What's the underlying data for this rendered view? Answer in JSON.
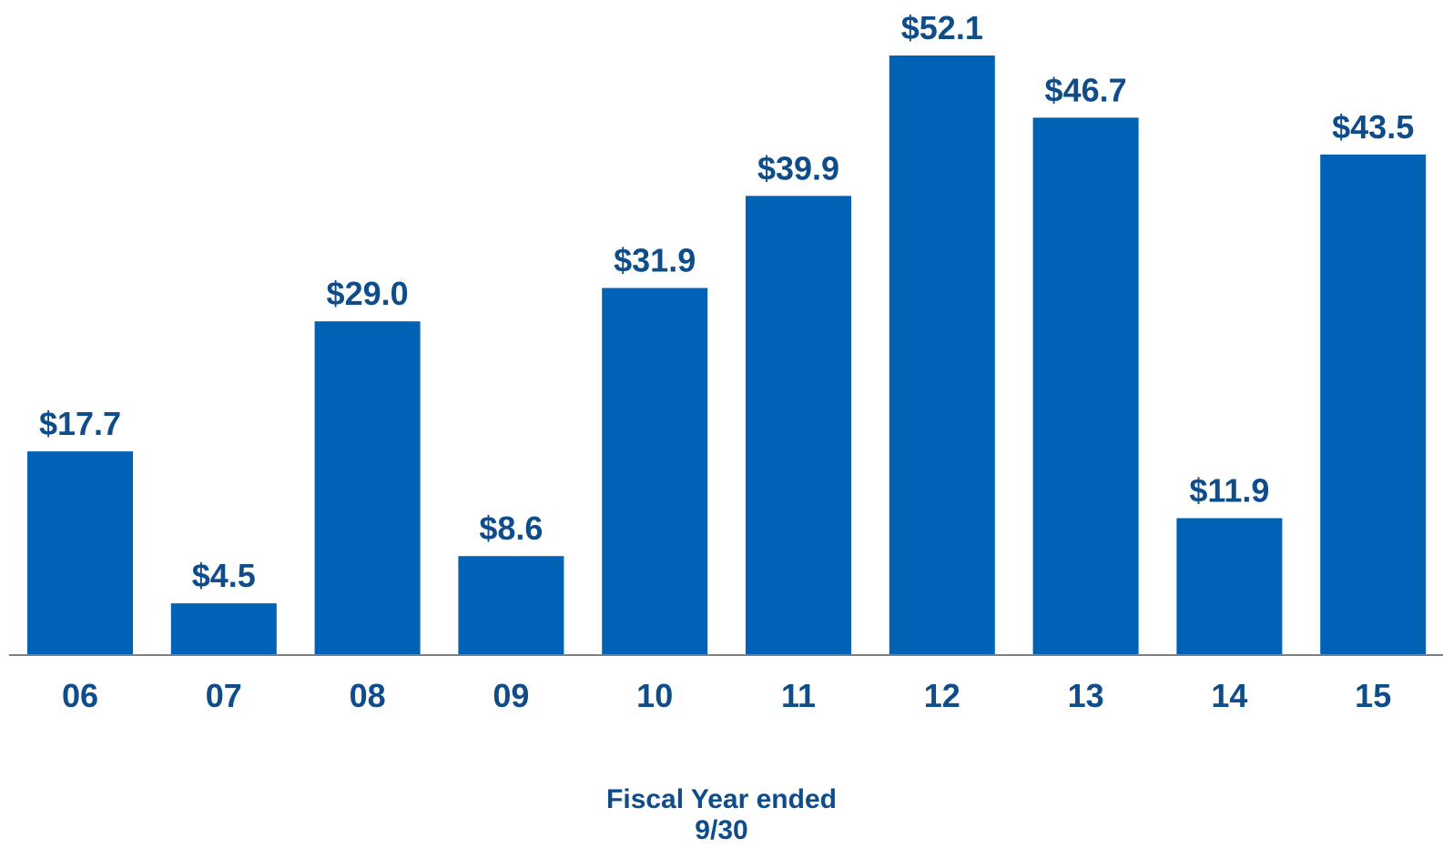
{
  "chart_data": {
    "type": "bar",
    "categories": [
      "06",
      "07",
      "08",
      "09",
      "10",
      "11",
      "12",
      "13",
      "14",
      "15"
    ],
    "values": [
      17.7,
      4.5,
      29.0,
      8.6,
      31.9,
      39.9,
      52.1,
      46.7,
      11.9,
      43.5
    ],
    "value_labels": [
      "$17.7",
      "$4.5",
      "$29.0",
      "$8.6",
      "$31.9",
      "$39.9",
      "$52.1",
      "$46.7",
      "$11.9",
      "$43.5"
    ],
    "xlabel_lines": [
      "Fiscal Year ended",
      "9/30"
    ],
    "ylim": [
      0,
      52.1
    ],
    "grid": false,
    "legend": "none",
    "colors": {
      "bar": "#0062B4",
      "label": "#0F4C8A",
      "axis": "#7F7F7F"
    }
  }
}
